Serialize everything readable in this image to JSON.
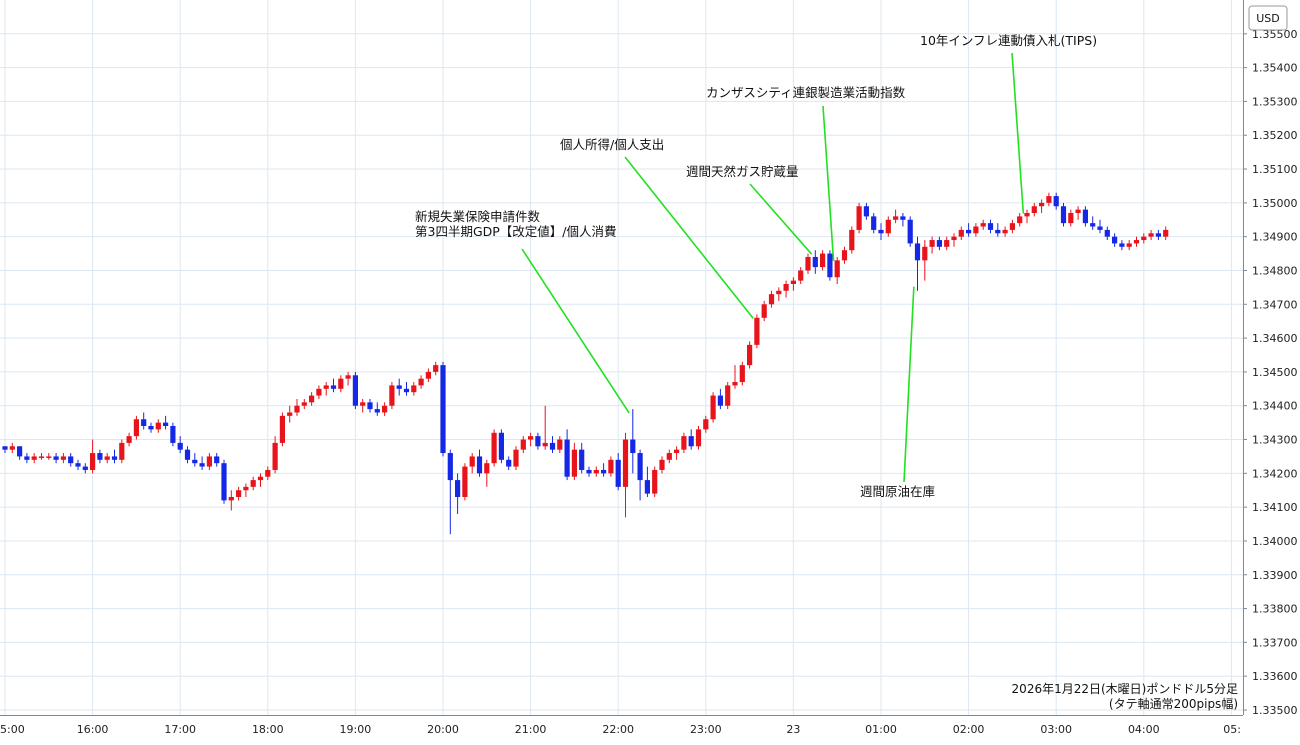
{
  "currency_label": "USD",
  "footer": {
    "line1": "2026年1月22日(木曜日)ポンドドル5分足",
    "line2": "(タテ軸通常200pips幅)"
  },
  "colors": {
    "up": "#e8141c",
    "down": "#1428e6",
    "annotation_line": "#22e022",
    "grid": "#dce7f2"
  },
  "chart_data": {
    "type": "candlestick",
    "ylim": [
      1.335,
      1.356
    ],
    "y_ticks": [
      "1.33500",
      "1.33600",
      "1.33700",
      "1.33800",
      "1.33900",
      "1.34000",
      "1.34100",
      "1.34200",
      "1.34300",
      "1.34400",
      "1.34500",
      "1.34600",
      "1.34700",
      "1.34800",
      "1.34900",
      "1.35000",
      "1.35100",
      "1.35200",
      "1.35300",
      "1.35400",
      "1.35500"
    ],
    "x_ticks": [
      {
        "label": "5:00",
        "i": 0
      },
      {
        "label": "16:00",
        "i": 12
      },
      {
        "label": "17:00",
        "i": 24
      },
      {
        "label": "18:00",
        "i": 36
      },
      {
        "label": "19:00",
        "i": 48
      },
      {
        "label": "20:00",
        "i": 60
      },
      {
        "label": "21:00",
        "i": 72
      },
      {
        "label": "22:00",
        "i": 84
      },
      {
        "label": "23:00",
        "i": 96
      },
      {
        "label": "23",
        "i": 108
      },
      {
        "label": "01:00",
        "i": 120
      },
      {
        "label": "02:00",
        "i": 132
      },
      {
        "label": "03:00",
        "i": 144
      },
      {
        "label": "04:00",
        "i": 156
      },
      {
        "label": "05:",
        "i": 168
      }
    ],
    "candles": [
      [
        1.3428,
        1.3428,
        1.3426,
        1.3427
      ],
      [
        1.3427,
        1.3429,
        1.3426,
        1.3428
      ],
      [
        1.3428,
        1.3428,
        1.3424,
        1.3425
      ],
      [
        1.3425,
        1.3426,
        1.3423,
        1.3424
      ],
      [
        1.3424,
        1.3426,
        1.3423,
        1.3425
      ],
      [
        1.3425,
        1.3426,
        1.3424,
        1.3425
      ],
      [
        1.3425,
        1.3426,
        1.3424,
        1.3425
      ],
      [
        1.3425,
        1.3426,
        1.3423,
        1.3424
      ],
      [
        1.3424,
        1.3426,
        1.3423,
        1.3425
      ],
      [
        1.3425,
        1.3426,
        1.3422,
        1.3423
      ],
      [
        1.3423,
        1.3424,
        1.3421,
        1.3422
      ],
      [
        1.3422,
        1.3423,
        1.342,
        1.3421
      ],
      [
        1.3421,
        1.343,
        1.342,
        1.3426
      ],
      [
        1.3426,
        1.3427,
        1.3423,
        1.3424
      ],
      [
        1.3424,
        1.3426,
        1.3423,
        1.3425
      ],
      [
        1.3425,
        1.3427,
        1.3423,
        1.3424
      ],
      [
        1.3424,
        1.343,
        1.3423,
        1.3429
      ],
      [
        1.3429,
        1.3432,
        1.3428,
        1.3431
      ],
      [
        1.3431,
        1.3437,
        1.343,
        1.3436
      ],
      [
        1.3436,
        1.3438,
        1.3433,
        1.3434
      ],
      [
        1.3434,
        1.3435,
        1.3432,
        1.3433
      ],
      [
        1.3433,
        1.3436,
        1.3432,
        1.3435
      ],
      [
        1.3435,
        1.3437,
        1.3433,
        1.3434
      ],
      [
        1.3434,
        1.3435,
        1.3428,
        1.3429
      ],
      [
        1.3429,
        1.3431,
        1.3426,
        1.3427
      ],
      [
        1.3427,
        1.3428,
        1.3423,
        1.3424
      ],
      [
        1.3424,
        1.3426,
        1.3422,
        1.3423
      ],
      [
        1.3423,
        1.3425,
        1.3421,
        1.3422
      ],
      [
        1.3422,
        1.3426,
        1.3421,
        1.3425
      ],
      [
        1.3425,
        1.3426,
        1.3422,
        1.3423
      ],
      [
        1.3423,
        1.3424,
        1.3411,
        1.3412
      ],
      [
        1.3412,
        1.3415,
        1.3409,
        1.3413
      ],
      [
        1.3413,
        1.3416,
        1.3412,
        1.3415
      ],
      [
        1.3415,
        1.3417,
        1.3413,
        1.3416
      ],
      [
        1.3416,
        1.3419,
        1.3415,
        1.3418
      ],
      [
        1.3418,
        1.342,
        1.3416,
        1.3419
      ],
      [
        1.3419,
        1.3422,
        1.3418,
        1.3421
      ],
      [
        1.3421,
        1.3431,
        1.342,
        1.3429
      ],
      [
        1.3429,
        1.3438,
        1.3428,
        1.3437
      ],
      [
        1.3437,
        1.344,
        1.3435,
        1.3438
      ],
      [
        1.3438,
        1.3442,
        1.3437,
        1.344
      ],
      [
        1.344,
        1.3442,
        1.3439,
        1.3441
      ],
      [
        1.3441,
        1.3444,
        1.344,
        1.3443
      ],
      [
        1.3443,
        1.3446,
        1.3442,
        1.3445
      ],
      [
        1.3445,
        1.3447,
        1.3443,
        1.3446
      ],
      [
        1.3446,
        1.3448,
        1.3444,
        1.3445
      ],
      [
        1.3445,
        1.3449,
        1.3444,
        1.3448
      ],
      [
        1.3448,
        1.345,
        1.3446,
        1.3449
      ],
      [
        1.3449,
        1.345,
        1.3439,
        1.344
      ],
      [
        1.344,
        1.3442,
        1.3438,
        1.3441
      ],
      [
        1.3441,
        1.3442,
        1.3438,
        1.3439
      ],
      [
        1.3439,
        1.3441,
        1.3437,
        1.3438
      ],
      [
        1.3438,
        1.3441,
        1.3437,
        1.344
      ],
      [
        1.344,
        1.3447,
        1.3439,
        1.3446
      ],
      [
        1.3446,
        1.3448,
        1.3443,
        1.3445
      ],
      [
        1.3445,
        1.3447,
        1.3443,
        1.3444
      ],
      [
        1.3444,
        1.3447,
        1.3443,
        1.3446
      ],
      [
        1.3446,
        1.3449,
        1.3445,
        1.3448
      ],
      [
        1.3448,
        1.3451,
        1.3447,
        1.345
      ],
      [
        1.345,
        1.3453,
        1.3449,
        1.3452
      ],
      [
        1.3452,
        1.3453,
        1.3425,
        1.3426
      ],
      [
        1.3426,
        1.3427,
        1.3402,
        1.3418
      ],
      [
        1.3418,
        1.342,
        1.3408,
        1.3413
      ],
      [
        1.3413,
        1.3423,
        1.3412,
        1.3422
      ],
      [
        1.3422,
        1.3426,
        1.342,
        1.3425
      ],
      [
        1.3425,
        1.3427,
        1.3419,
        1.342
      ],
      [
        1.342,
        1.3424,
        1.3416,
        1.3423
      ],
      [
        1.3423,
        1.3433,
        1.3422,
        1.3432
      ],
      [
        1.3432,
        1.3433,
        1.3423,
        1.3424
      ],
      [
        1.3424,
        1.3425,
        1.3421,
        1.3422
      ],
      [
        1.3422,
        1.3428,
        1.3421,
        1.3427
      ],
      [
        1.3427,
        1.3431,
        1.3426,
        1.343
      ],
      [
        1.343,
        1.3432,
        1.3428,
        1.3431
      ],
      [
        1.3431,
        1.3432,
        1.3427,
        1.3428
      ],
      [
        1.3428,
        1.344,
        1.3427,
        1.3429
      ],
      [
        1.3429,
        1.3431,
        1.3426,
        1.3427
      ],
      [
        1.3427,
        1.3431,
        1.3426,
        1.343
      ],
      [
        1.343,
        1.3433,
        1.3418,
        1.3419
      ],
      [
        1.3419,
        1.3429,
        1.3418,
        1.3427
      ],
      [
        1.3427,
        1.3429,
        1.342,
        1.3421
      ],
      [
        1.3421,
        1.3422,
        1.3419,
        1.342
      ],
      [
        1.342,
        1.3422,
        1.3419,
        1.3421
      ],
      [
        1.3421,
        1.3423,
        1.3419,
        1.342
      ],
      [
        1.342,
        1.3425,
        1.3419,
        1.3424
      ],
      [
        1.3424,
        1.3426,
        1.3415,
        1.3416
      ],
      [
        1.3416,
        1.3432,
        1.3407,
        1.343
      ],
      [
        1.343,
        1.3439,
        1.342,
        1.3426
      ],
      [
        1.3426,
        1.3427,
        1.3412,
        1.3418
      ],
      [
        1.3418,
        1.3422,
        1.3413,
        1.3414
      ],
      [
        1.3414,
        1.3422,
        1.3413,
        1.3421
      ],
      [
        1.3421,
        1.3425,
        1.342,
        1.3424
      ],
      [
        1.3424,
        1.3427,
        1.3423,
        1.3426
      ],
      [
        1.3426,
        1.3428,
        1.3424,
        1.3427
      ],
      [
        1.3427,
        1.3432,
        1.3426,
        1.3431
      ],
      [
        1.3431,
        1.3433,
        1.3427,
        1.3428
      ],
      [
        1.3428,
        1.3434,
        1.3427,
        1.3433
      ],
      [
        1.3433,
        1.3437,
        1.3432,
        1.3436
      ],
      [
        1.3436,
        1.3444,
        1.3435,
        1.3443
      ],
      [
        1.3443,
        1.3445,
        1.3439,
        1.344
      ],
      [
        1.344,
        1.3447,
        1.3439,
        1.3446
      ],
      [
        1.3446,
        1.3452,
        1.3445,
        1.3447
      ],
      [
        1.3447,
        1.3453,
        1.3446,
        1.3452
      ],
      [
        1.3452,
        1.3459,
        1.3451,
        1.3458
      ],
      [
        1.3458,
        1.3467,
        1.3457,
        1.3466
      ],
      [
        1.3466,
        1.3471,
        1.3465,
        1.347
      ],
      [
        1.347,
        1.3474,
        1.3469,
        1.3473
      ],
      [
        1.3473,
        1.3475,
        1.3471,
        1.3474
      ],
      [
        1.3474,
        1.3477,
        1.3472,
        1.3476
      ],
      [
        1.3476,
        1.3478,
        1.3474,
        1.3477
      ],
      [
        1.3477,
        1.3481,
        1.3476,
        1.348
      ],
      [
        1.348,
        1.3485,
        1.3479,
        1.3484
      ],
      [
        1.3484,
        1.3486,
        1.3479,
        1.3481
      ],
      [
        1.3481,
        1.3486,
        1.348,
        1.3485
      ],
      [
        1.3485,
        1.3486,
        1.3477,
        1.3478
      ],
      [
        1.3478,
        1.3484,
        1.3476,
        1.3483
      ],
      [
        1.3483,
        1.3487,
        1.3482,
        1.3486
      ],
      [
        1.3486,
        1.3493,
        1.3485,
        1.3492
      ],
      [
        1.3492,
        1.35,
        1.3491,
        1.3499
      ],
      [
        1.3499,
        1.35,
        1.3495,
        1.3496
      ],
      [
        1.3496,
        1.3497,
        1.3491,
        1.3492
      ],
      [
        1.3492,
        1.3494,
        1.3489,
        1.3491
      ],
      [
        1.3491,
        1.3496,
        1.349,
        1.3495
      ],
      [
        1.3495,
        1.3498,
        1.3494,
        1.3496
      ],
      [
        1.3496,
        1.3497,
        1.3493,
        1.3495
      ],
      [
        1.3495,
        1.3496,
        1.3487,
        1.3488
      ],
      [
        1.3488,
        1.349,
        1.3474,
        1.3483
      ],
      [
        1.3483,
        1.3489,
        1.3477,
        1.3487
      ],
      [
        1.3487,
        1.349,
        1.3485,
        1.3489
      ],
      [
        1.3489,
        1.349,
        1.3486,
        1.3487
      ],
      [
        1.3487,
        1.349,
        1.3486,
        1.3489
      ],
      [
        1.3489,
        1.3491,
        1.3487,
        1.349
      ],
      [
        1.349,
        1.3493,
        1.3489,
        1.3492
      ],
      [
        1.3492,
        1.3494,
        1.349,
        1.3491
      ],
      [
        1.3491,
        1.3494,
        1.349,
        1.3493
      ],
      [
        1.3493,
        1.3495,
        1.3492,
        1.3494
      ],
      [
        1.3494,
        1.3495,
        1.3491,
        1.3492
      ],
      [
        1.3492,
        1.3494,
        1.349,
        1.3491
      ],
      [
        1.3491,
        1.3493,
        1.349,
        1.3492
      ],
      [
        1.3492,
        1.3495,
        1.3491,
        1.3494
      ],
      [
        1.3494,
        1.3497,
        1.3493,
        1.3496
      ],
      [
        1.3496,
        1.3498,
        1.3494,
        1.3497
      ],
      [
        1.3497,
        1.35,
        1.3496,
        1.3499
      ],
      [
        1.3499,
        1.3501,
        1.3497,
        1.35
      ],
      [
        1.35,
        1.3503,
        1.3499,
        1.3502
      ],
      [
        1.3502,
        1.3503,
        1.3498,
        1.3499
      ],
      [
        1.3499,
        1.35,
        1.3493,
        1.3494
      ],
      [
        1.3494,
        1.3498,
        1.3493,
        1.3497
      ],
      [
        1.3497,
        1.3499,
        1.3495,
        1.3498
      ],
      [
        1.3498,
        1.3499,
        1.3493,
        1.3494
      ],
      [
        1.3494,
        1.3496,
        1.3492,
        1.3493
      ],
      [
        1.3493,
        1.3495,
        1.3491,
        1.3492
      ],
      [
        1.3492,
        1.3493,
        1.3489,
        1.349
      ],
      [
        1.349,
        1.3491,
        1.3487,
        1.3488
      ],
      [
        1.3488,
        1.3489,
        1.3486,
        1.3487
      ],
      [
        1.3487,
        1.3489,
        1.3486,
        1.3488
      ],
      [
        1.3488,
        1.349,
        1.3487,
        1.3489
      ],
      [
        1.3489,
        1.3491,
        1.3488,
        1.349
      ],
      [
        1.349,
        1.3492,
        1.3489,
        1.3491
      ],
      [
        1.3491,
        1.3492,
        1.3489,
        1.349
      ],
      [
        1.349,
        1.3493,
        1.3489,
        1.3492
      ]
    ],
    "annotations": [
      {
        "lines": [
          "新規失業保険申請件数",
          "第3四半期GDP【改定値】/個人消費"
        ],
        "target_i": 85.5
      },
      {
        "lines": [
          "個人所得/個人支出"
        ],
        "target_i": 102.5
      },
      {
        "lines": [
          "週間天然ガス貯蔵量"
        ],
        "target_i": 110.5
      },
      {
        "lines": [
          "カンザスシティ連銀製造業活動指数"
        ],
        "target_i": 113.5
      },
      {
        "lines": [
          "10年インフレ連動債入札(TIPS)"
        ],
        "target_i": 139.5
      },
      {
        "lines": [
          "週間原油在庫"
        ],
        "target_i": 124.5
      }
    ]
  }
}
